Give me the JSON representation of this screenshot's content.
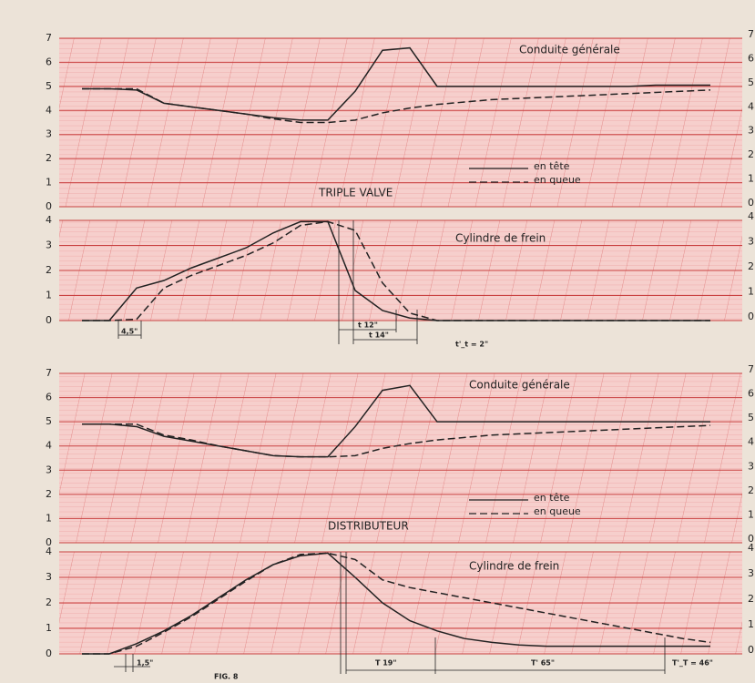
{
  "chart_data": [
    {
      "type": "line",
      "title": "Conduite générale",
      "label": "TRIPLE VALVE",
      "categories": [
        null,
        null,
        null,
        null,
        null,
        null,
        null,
        null,
        null,
        null,
        null,
        null,
        null,
        null,
        null,
        null,
        null,
        null,
        null,
        null,
        null,
        null,
        null,
        null
      ],
      "series": [
        {
          "name": "en tête",
          "color": "#222222",
          "line_style": "solid",
          "values": [
            4.9,
            4.9,
            4.85,
            4.3,
            4.15,
            4.0,
            3.85,
            3.7,
            3.6,
            3.6,
            4.8,
            6.5,
            6.6,
            5.0,
            5.0,
            5.0,
            5.0,
            5.0,
            5.0,
            5.0,
            5.0,
            5.05,
            5.05,
            5.05
          ]
        },
        {
          "name": "en queue",
          "color": "#222222",
          "line_style": "dashed",
          "values": [
            4.9,
            4.9,
            4.9,
            4.3,
            4.15,
            4.0,
            3.85,
            3.65,
            3.5,
            3.5,
            3.6,
            3.9,
            4.1,
            4.25,
            4.35,
            4.45,
            4.5,
            4.55,
            4.6,
            4.65,
            4.7,
            4.75,
            4.8,
            4.85
          ]
        }
      ],
      "ylim": [
        0,
        7
      ],
      "yticks": [
        0,
        1,
        2,
        3,
        4,
        5,
        6,
        7
      ],
      "grid": true,
      "legend": true
    },
    {
      "type": "line",
      "title": "Cylindre de frein",
      "categories": [
        null,
        null,
        null,
        null,
        null,
        null,
        null,
        null,
        null,
        null,
        null,
        null,
        null,
        null,
        null,
        null,
        null,
        null,
        null,
        null,
        null,
        null,
        null,
        null
      ],
      "series": [
        {
          "color": "#222222",
          "line_style": "solid",
          "values": [
            0,
            0,
            1.3,
            1.6,
            2.1,
            2.5,
            2.9,
            3.5,
            3.95,
            3.95,
            1.2,
            0.4,
            0.1,
            0,
            0,
            0,
            0,
            0,
            0,
            0,
            0,
            0,
            0,
            0
          ]
        },
        {
          "color": "#222222",
          "line_style": "dashed",
          "values": [
            0,
            0,
            0.05,
            1.3,
            1.8,
            2.2,
            2.6,
            3.1,
            3.8,
            3.95,
            3.6,
            1.5,
            0.3,
            0,
            0,
            0,
            0,
            0,
            0,
            0,
            0,
            0,
            0,
            0
          ]
        }
      ],
      "ylim": [
        0,
        4
      ],
      "yticks": [
        0,
        1,
        2,
        3,
        4
      ],
      "grid": true,
      "annotations": [
        "4,5\"",
        "t 12\"",
        "t 14\"",
        "t'_t = 2\""
      ]
    },
    {
      "type": "line",
      "title": "Conduite générale",
      "label": "DISTRIBUTEUR",
      "categories": [
        null,
        null,
        null,
        null,
        null,
        null,
        null,
        null,
        null,
        null,
        null,
        null,
        null,
        null,
        null,
        null,
        null,
        null,
        null,
        null,
        null,
        null,
        null,
        null
      ],
      "series": [
        {
          "name": "en tête",
          "color": "#222222",
          "line_style": "solid",
          "values": [
            4.9,
            4.9,
            4.8,
            4.4,
            4.2,
            4.0,
            3.8,
            3.6,
            3.55,
            3.55,
            4.8,
            6.3,
            6.5,
            5.0,
            5.0,
            5.0,
            5.0,
            5.0,
            5.0,
            5.0,
            5.0,
            5.0,
            5.0,
            5.0
          ]
        },
        {
          "name": "en queue",
          "color": "#222222",
          "line_style": "dashed",
          "values": [
            4.9,
            4.9,
            4.9,
            4.45,
            4.25,
            4.0,
            3.8,
            3.6,
            3.55,
            3.55,
            3.6,
            3.9,
            4.1,
            4.25,
            4.35,
            4.45,
            4.5,
            4.55,
            4.6,
            4.65,
            4.7,
            4.75,
            4.8,
            4.85
          ]
        }
      ],
      "ylim": [
        0,
        7
      ],
      "yticks": [
        0,
        1,
        2,
        3,
        4,
        5,
        6,
        7
      ],
      "grid": true,
      "legend": true
    },
    {
      "type": "line",
      "title": "Cylindre de frein",
      "categories": [
        null,
        null,
        null,
        null,
        null,
        null,
        null,
        null,
        null,
        null,
        null,
        null,
        null,
        null,
        null,
        null,
        null,
        null,
        null,
        null,
        null,
        null,
        null,
        null
      ],
      "series": [
        {
          "color": "#222222",
          "line_style": "solid",
          "values": [
            0,
            0,
            0.4,
            0.9,
            1.5,
            2.2,
            2.9,
            3.5,
            3.85,
            3.95,
            3.0,
            2.0,
            1.3,
            0.9,
            0.6,
            0.45,
            0.35,
            0.3,
            0.3,
            0.3,
            0.3,
            0.3,
            0.3,
            0.3
          ]
        },
        {
          "color": "#222222",
          "line_style": "dashed",
          "values": [
            0,
            0,
            0.3,
            0.85,
            1.45,
            2.15,
            2.85,
            3.5,
            3.9,
            3.95,
            3.7,
            2.9,
            2.6,
            2.4,
            2.2,
            2.0,
            1.8,
            1.6,
            1.4,
            1.2,
            1.0,
            0.8,
            0.6,
            0.45
          ]
        }
      ],
      "ylim": [
        0,
        4
      ],
      "yticks": [
        0,
        1,
        2,
        3,
        4
      ],
      "grid": true,
      "annotations": [
        "1,5\"",
        "T 19\"",
        "T' 65\"",
        "T'_T = 46\""
      ]
    }
  ],
  "caption": "FIG. 8"
}
